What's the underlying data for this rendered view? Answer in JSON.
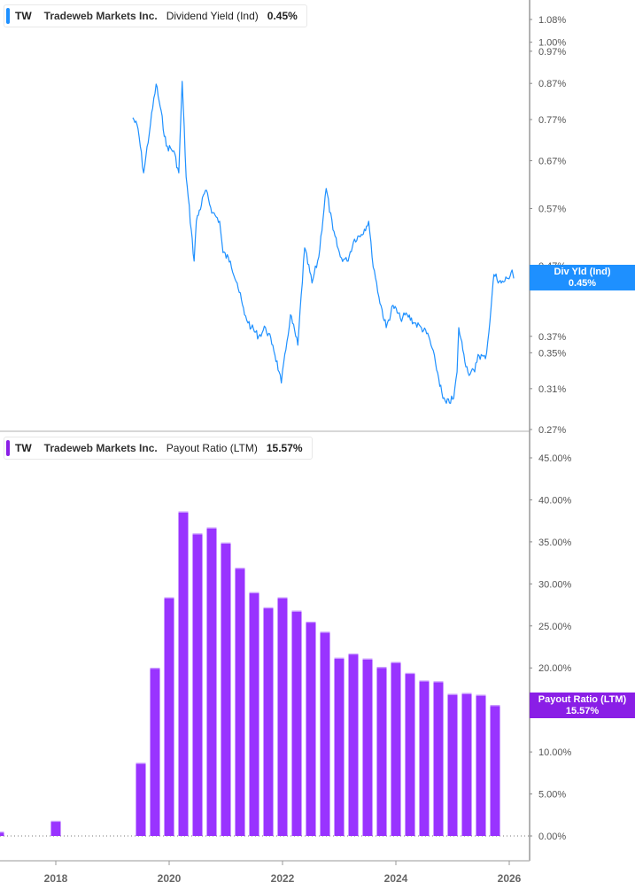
{
  "top_legend": {
    "ticker": "TW",
    "company": "Tradeweb Markets Inc.",
    "metric": "Dividend Yield (Ind)",
    "value": "0.45%"
  },
  "bottom_legend": {
    "ticker": "TW",
    "company": "Tradeweb Markets Inc.",
    "metric": "Payout Ratio (LTM)",
    "value": "15.57%"
  },
  "colors": {
    "dividend_yield": "#1e90ff",
    "payout_ratio": "#9933ff",
    "payout_tag": "#8a1ee6"
  },
  "chart_data": [
    {
      "type": "line",
      "ylabel": "",
      "y_scale": "log",
      "y_ticks": [
        "1.08%",
        "1.00%",
        "0.97%",
        "0.87%",
        "0.77%",
        "0.67%",
        "0.57%",
        "0.47%",
        "0.37%",
        "0.35%",
        "0.31%",
        "0.27%"
      ],
      "y_tick_values": [
        1.08,
        1.0,
        0.97,
        0.87,
        0.77,
        0.67,
        0.57,
        0.47,
        0.37,
        0.35,
        0.31,
        0.27
      ],
      "ylim": [
        0.27,
        1.15
      ],
      "tag": {
        "label": "Div Yld (Ind)",
        "value": "0.45%"
      },
      "series": [
        {
          "name": "Dividend Yield (Ind)",
          "x": [
            2019.36,
            2019.45,
            2019.55,
            2019.67,
            2019.77,
            2019.84,
            2019.95,
            2020.08,
            2020.17,
            2020.23,
            2020.3,
            2020.39,
            2020.44,
            2020.48,
            2020.64,
            2020.77,
            2020.89,
            2020.95,
            2021.08,
            2021.2,
            2021.33,
            2021.45,
            2021.58,
            2021.7,
            2021.83,
            2021.94,
            2021.98,
            2022.08,
            2022.14,
            2022.27,
            2022.39,
            2022.52,
            2022.64,
            2022.77,
            2022.89,
            2023.02,
            2023.14,
            2023.27,
            2023.39,
            2023.52,
            2023.58,
            2023.7,
            2023.83,
            2023.95,
            2024.08,
            2024.2,
            2024.33,
            2024.45,
            2024.58,
            2024.7,
            2024.83,
            2024.89,
            2025.02,
            2025.08,
            2025.11,
            2025.2,
            2025.27,
            2025.39,
            2025.45,
            2025.58,
            2025.64,
            2025.7,
            2025.73,
            2025.86,
            2025.98,
            2026.05,
            2026.08
          ],
          "y": [
            0.775,
            0.747,
            0.643,
            0.758,
            0.868,
            0.805,
            0.704,
            0.693,
            0.643,
            0.876,
            0.634,
            0.53,
            0.477,
            0.546,
            0.606,
            0.562,
            0.546,
            0.491,
            0.477,
            0.443,
            0.398,
            0.381,
            0.37,
            0.381,
            0.359,
            0.328,
            0.316,
            0.364,
            0.398,
            0.359,
            0.499,
            0.443,
            0.484,
            0.61,
            0.53,
            0.484,
            0.477,
            0.514,
            0.522,
            0.546,
            0.484,
            0.423,
            0.381,
            0.411,
            0.393,
            0.398,
            0.387,
            0.381,
            0.37,
            0.338,
            0.3,
            0.295,
            0.3,
            0.328,
            0.381,
            0.348,
            0.328,
            0.328,
            0.348,
            0.343,
            0.375,
            0.429,
            0.456,
            0.443,
            0.45,
            0.463,
            0.45
          ]
        }
      ]
    },
    {
      "type": "bar",
      "ylabel": "",
      "y_ticks": [
        "45.00%",
        "40.00%",
        "35.00%",
        "30.00%",
        "25.00%",
        "20.00%",
        "15.00%",
        "10.00%",
        "5.00%",
        "0.00%"
      ],
      "ylim": [
        0,
        45
      ],
      "x_ticks": [
        "2018",
        "2020",
        "2022",
        "2024",
        "2026"
      ],
      "tag": {
        "label": "Payout Ratio (LTM)",
        "value": "15.57%"
      },
      "series": [
        {
          "name": "Payout Ratio (LTM)",
          "x": [
            2017.0,
            2018.0,
            2019.5,
            2019.75,
            2020.0,
            2020.25,
            2020.5,
            2020.75,
            2021.0,
            2021.25,
            2021.5,
            2021.75,
            2022.0,
            2022.25,
            2022.5,
            2022.75,
            2023.0,
            2023.25,
            2023.5,
            2023.75,
            2024.0,
            2024.25,
            2024.5,
            2024.75,
            2025.0,
            2025.25,
            2025.5,
            2025.75
          ],
          "y": [
            0.5,
            1.8,
            8.7,
            20.0,
            28.4,
            38.6,
            36.0,
            36.7,
            34.9,
            31.9,
            29.0,
            27.2,
            28.4,
            26.8,
            25.5,
            24.3,
            21.2,
            21.7,
            21.1,
            20.1,
            20.7,
            19.4,
            18.5,
            18.4,
            16.9,
            17.0,
            16.8,
            15.57
          ]
        }
      ]
    }
  ]
}
